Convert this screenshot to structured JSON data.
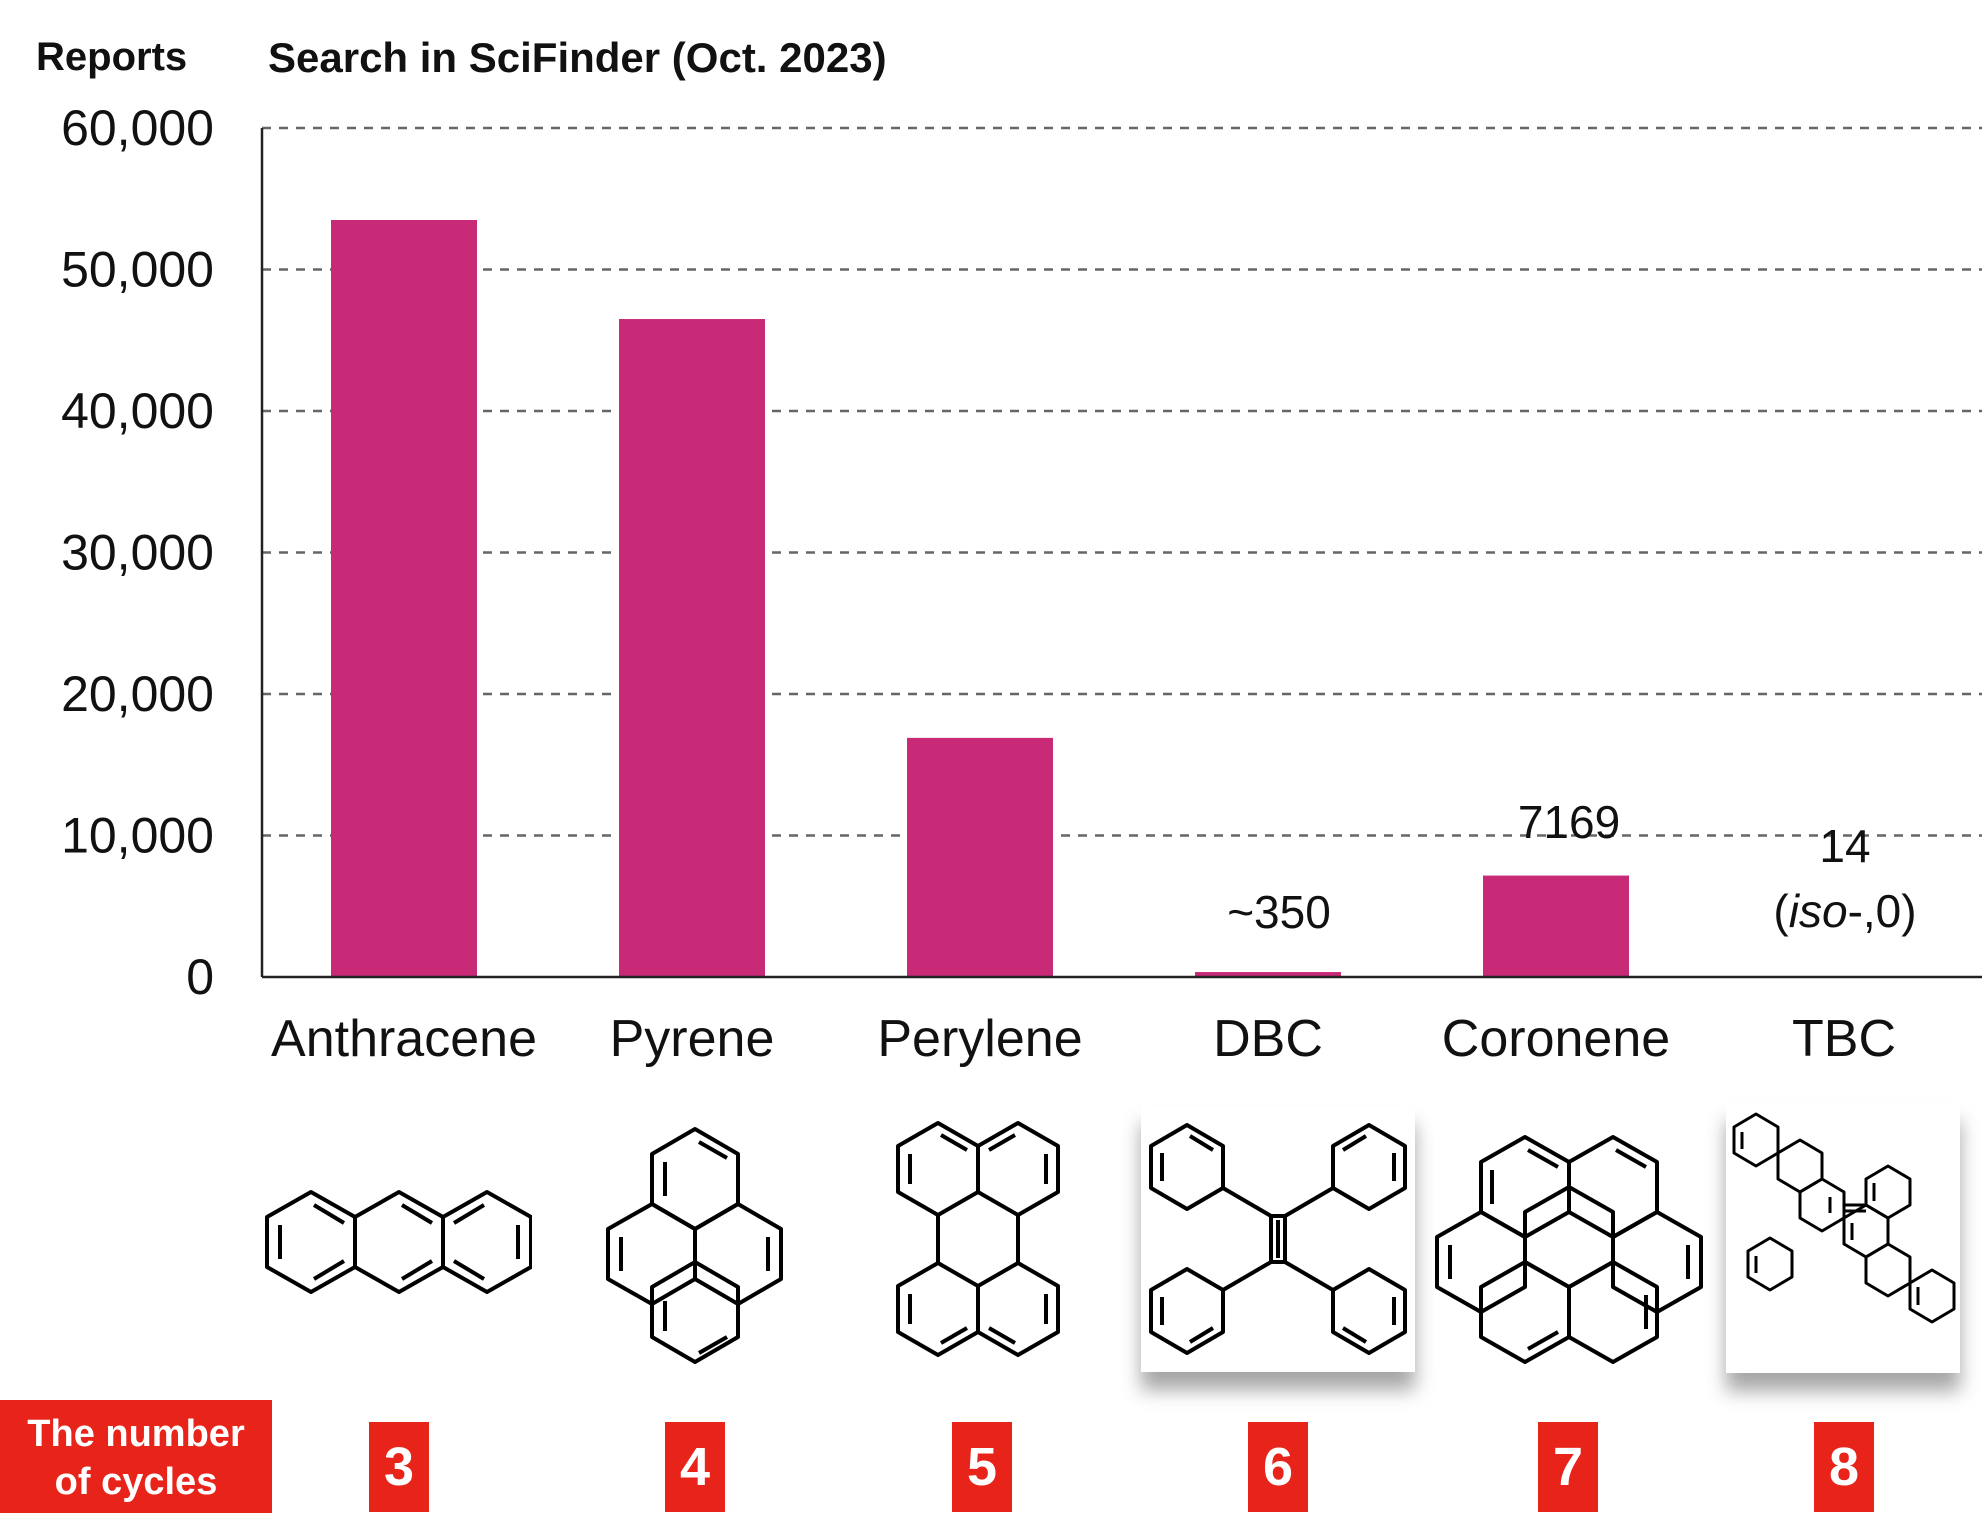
{
  "chart_data": {
    "type": "bar",
    "title": "Search in SciFinder (Oct. 2023)",
    "ylabel": "Reports",
    "xlabel": "",
    "ylim": [
      0,
      60000
    ],
    "yticks": [
      "0",
      "10,000",
      "20,000",
      "30,000",
      "40,000",
      "50,000",
      "60,000"
    ],
    "grid": true,
    "bar_color": "#c82a78",
    "categories": [
      "Anthracene",
      "Pyrene",
      "Perylene",
      "DBC",
      "Coronene",
      "TBC"
    ],
    "values": [
      53500,
      46500,
      16900,
      350,
      7169,
      14
    ],
    "data_labels": {
      "DBC": "~350",
      "Coronene": "7169",
      "TBC": [
        "14",
        "(",
        "iso",
        "-,0)"
      ]
    }
  },
  "cycles": {
    "label_line1": "The number",
    "label_line2": "of cycles",
    "values": [
      "3",
      "4",
      "5",
      "6",
      "7",
      "8"
    ],
    "badge_color": "#e8231a"
  },
  "structures": [
    "anthracene-structure",
    "pyrene-structure",
    "perylene-structure",
    "dbc-structure",
    "coronene-structure",
    "tbc-structure"
  ]
}
